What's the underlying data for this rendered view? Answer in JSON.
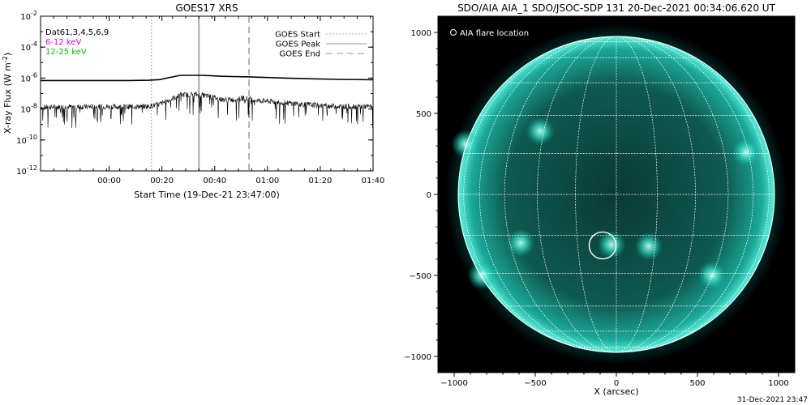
{
  "chart_data": [
    {
      "type": "line",
      "title": "GOES17 XRS",
      "xlabel": "Start Time (19-Dec-21 23:47:00)",
      "ylabel": "X-ray Flux (W m",
      "ylabel_sup": "-2",
      "ylabel_close": ")",
      "y_scale": "log",
      "ylim": [
        1e-12,
        0.01
      ],
      "y_ticks": [
        {
          "value": 0.01,
          "base": "10",
          "exp": "-2"
        },
        {
          "value": 0.0001,
          "base": "10",
          "exp": "-4"
        },
        {
          "value": 1e-06,
          "base": "10",
          "exp": "-6"
        },
        {
          "value": 1e-08,
          "base": "10",
          "exp": "-8"
        },
        {
          "value": 1e-10,
          "base": "10",
          "exp": "-10"
        },
        {
          "value": 1e-12,
          "base": "10",
          "exp": "-12"
        }
      ],
      "xlim_min": [
        -13,
        113
      ],
      "x_ticks": [
        {
          "min": 13,
          "label": "00:00"
        },
        {
          "min": 33,
          "label": "00:20"
        },
        {
          "min": 53,
          "label": "00:40"
        },
        {
          "min": 73,
          "label": "01:00"
        },
        {
          "min": 93,
          "label": "01:20"
        },
        {
          "min": 113,
          "label": "01:40"
        }
      ],
      "text_lines": [
        {
          "text": "Dat61,3,4,5,6,9",
          "color": "#000000"
        },
        {
          "text": "6-12 keV",
          "color": "#dd00dd"
        },
        {
          "text": "12-25 keV",
          "color": "#00c000"
        }
      ],
      "legend_position": "top-right",
      "legend": [
        {
          "name": "GOES Start",
          "style": "dotted",
          "color": "#aaaaaa"
        },
        {
          "name": "GOES Peak",
          "style": "solid",
          "color": "#aaaaaa"
        },
        {
          "name": "GOES End",
          "style": "dashed",
          "color": "#aaaaaa"
        }
      ],
      "markers_min": {
        "start": 29,
        "peak": 47,
        "end": 66
      },
      "series": [
        {
          "color": "#000000",
          "x": [
            -13,
            0,
            10,
            20,
            28,
            32,
            36,
            40,
            44,
            48,
            52,
            56,
            60,
            66,
            72,
            80,
            90,
            100,
            113
          ],
          "y": [
            7e-07,
            7e-07,
            7e-07,
            7e-07,
            7.2e-07,
            8e-07,
            1.1e-06,
            1.5e-06,
            1.5e-06,
            1.5e-06,
            1.4e-06,
            1.3e-06,
            1.25e-06,
            1.2e-06,
            1.1e-06,
            1e-06,
            9e-07,
            8.2e-07,
            7.8e-07
          ]
        },
        {
          "color": "#000000",
          "noisy": true,
          "x": [
            -13,
            0,
            10,
            20,
            28,
            32,
            36,
            40,
            44,
            48,
            52,
            56,
            60,
            64,
            70,
            80,
            90,
            100,
            113
          ],
          "y": [
            1.3e-08,
            1.4e-08,
            1.4e-08,
            1.4e-08,
            1.5e-08,
            2e-08,
            4e-08,
            8e-08,
            9e-08,
            8e-08,
            6e-08,
            4e-08,
            4e-08,
            5e-08,
            3.5e-08,
            2.5e-08,
            1.8e-08,
            1.5e-08,
            1.4e-08
          ]
        }
      ]
    },
    {
      "type": "scatter",
      "title": "SDO/AIA AIA_1 SDO/JSOC-SDP 131 20-Dec-2021 00:34:06.620 UT",
      "xlabel": "X (arcsec)",
      "xlim": [
        -1100,
        1100
      ],
      "ylim": [
        -1100,
        1100
      ],
      "x_ticks": [
        -1000,
        -500,
        0,
        500,
        1000
      ],
      "y_ticks": [
        -1000,
        -500,
        0,
        500,
        1000
      ],
      "solar_radius_arcsec": 975,
      "grid_spacing_deg": 15,
      "legend": [
        {
          "name": "AIA flare location",
          "marker": "circle"
        }
      ],
      "legend_position": "top-left",
      "flare": {
        "x": -85,
        "y": -315
      },
      "active_regions": [
        {
          "x": -470,
          "y": 390
        },
        {
          "x": -930,
          "y": 310
        },
        {
          "x": 800,
          "y": 260
        },
        {
          "x": -30,
          "y": -310
        },
        {
          "x": 200,
          "y": -320
        },
        {
          "x": -590,
          "y": -300
        },
        {
          "x": 590,
          "y": -500
        },
        {
          "x": -830,
          "y": -500
        }
      ],
      "disk_color": "#00b0a0",
      "bg_color": "#000000",
      "grid_color": "#ffffff"
    }
  ],
  "footer": {
    "timestamp": "31-Dec-2021 23:47"
  }
}
